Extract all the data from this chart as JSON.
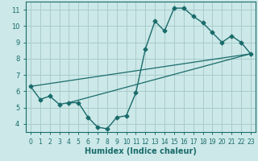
{
  "title": "",
  "xlabel": "Humidex (Indice chaleur)",
  "bg_color": "#cce8e8",
  "grid_color": "#aacccc",
  "line_color": "#1a6b6b",
  "xlim": [
    -0.5,
    23.5
  ],
  "ylim": [
    3.5,
    11.5
  ],
  "xticks": [
    0,
    1,
    2,
    3,
    4,
    5,
    6,
    7,
    8,
    9,
    10,
    11,
    12,
    13,
    14,
    15,
    16,
    17,
    18,
    19,
    20,
    21,
    22,
    23
  ],
  "yticks": [
    4,
    5,
    6,
    7,
    8,
    9,
    10,
    11
  ],
  "line1_x": [
    0,
    1,
    2,
    3,
    4,
    5,
    6,
    7,
    8,
    9,
    10,
    11,
    12,
    13,
    14,
    15,
    16,
    17,
    18,
    19,
    20,
    21,
    22,
    23
  ],
  "line1_y": [
    6.3,
    5.5,
    5.7,
    5.2,
    5.3,
    5.3,
    4.4,
    3.8,
    3.7,
    4.4,
    4.5,
    5.9,
    8.6,
    10.3,
    9.7,
    11.1,
    11.1,
    10.6,
    10.2,
    9.6,
    9.0,
    9.4,
    9.0,
    8.3
  ],
  "line2_x": [
    0,
    23
  ],
  "line2_y": [
    6.3,
    8.3
  ],
  "line3_x": [
    4,
    23
  ],
  "line3_y": [
    5.3,
    8.3
  ]
}
